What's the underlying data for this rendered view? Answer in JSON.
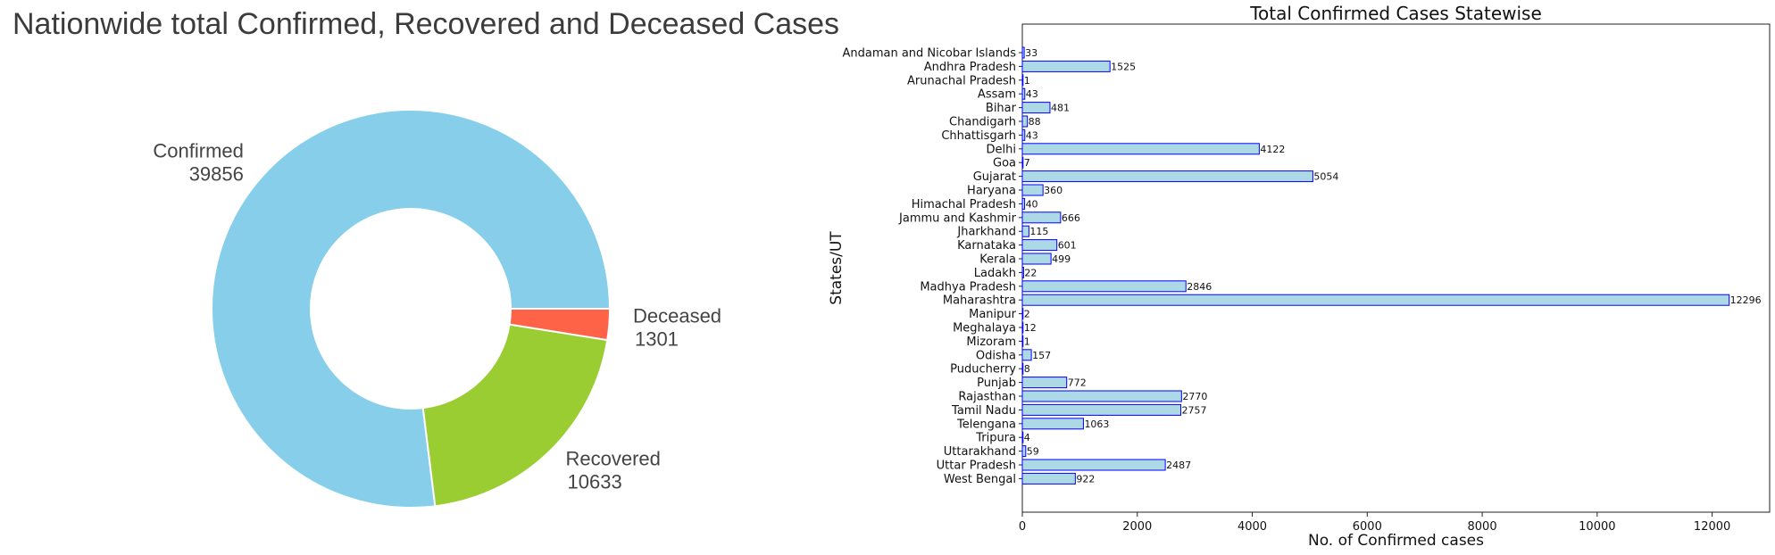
{
  "chart_data": [
    {
      "type": "pie",
      "title": "Nationwide total Confirmed, Recovered and Deceased Cases",
      "donut": true,
      "slices": [
        {
          "label": "Confirmed",
          "value": 39856,
          "color": "#87ceeb"
        },
        {
          "label": "Recovered",
          "value": 10633,
          "color": "#9acd32"
        },
        {
          "label": "Deceased",
          "value": 1301,
          "color": "#ff6347"
        }
      ]
    },
    {
      "type": "bar",
      "orientation": "horizontal",
      "title": "Total Confirmed Cases Statewise",
      "xlabel": "No. of Confirmed cases",
      "ylabel": "States/UT",
      "xlim": [
        0,
        13000
      ],
      "xticks": [
        0,
        2000,
        4000,
        6000,
        8000,
        10000,
        12000
      ],
      "bar_color": "#add8e6",
      "edge_color": "#0000ff",
      "categories": [
        "Andaman and Nicobar Islands",
        "Andhra Pradesh",
        "Arunachal Pradesh",
        "Assam",
        "Bihar",
        "Chandigarh",
        "Chhattisgarh",
        "Delhi",
        "Goa",
        "Gujarat",
        "Haryana",
        "Himachal Pradesh",
        "Jammu and Kashmir",
        "Jharkhand",
        "Karnataka",
        "Kerala",
        "Ladakh",
        "Madhya Pradesh",
        "Maharashtra",
        "Manipur",
        "Meghalaya",
        "Mizoram",
        "Odisha",
        "Puducherry",
        "Punjab",
        "Rajasthan",
        "Tamil Nadu",
        "Telengana",
        "Tripura",
        "Uttarakhand",
        "Uttar Pradesh",
        "West Bengal"
      ],
      "values": [
        33,
        1525,
        1,
        43,
        481,
        88,
        43,
        4122,
        7,
        5054,
        360,
        40,
        666,
        115,
        601,
        499,
        22,
        2846,
        12296,
        2,
        12,
        1,
        157,
        8,
        772,
        2770,
        2757,
        1063,
        4,
        59,
        2487,
        922
      ]
    }
  ]
}
